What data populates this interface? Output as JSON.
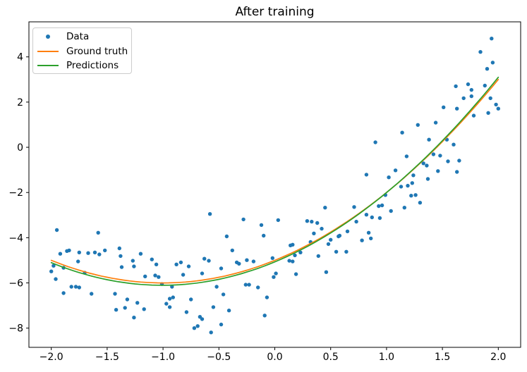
{
  "chart_data": {
    "type": "scatter",
    "title": "After training",
    "axes": {
      "xlim": [
        -2.2,
        2.2
      ],
      "ylim": [
        -8.85,
        5.55
      ],
      "xticks": [
        -2.0,
        -1.5,
        -1.0,
        -0.5,
        0.0,
        0.5,
        1.0,
        1.5,
        2.0
      ],
      "xtick_labels": [
        "−2.0",
        "−1.5",
        "−1.0",
        "−0.5",
        "0.0",
        "0.5",
        "1.0",
        "1.5",
        "2.0"
      ],
      "yticks": [
        4,
        2,
        0,
        -2,
        -4,
        -6,
        -8
      ],
      "ytick_labels": [
        "4",
        "2",
        "0",
        "−2",
        "−4",
        "−6",
        "−8"
      ],
      "grid": false,
      "frame_color": "#000000"
    },
    "legend": {
      "position": "upper-left",
      "entries": [
        {
          "label": "Data",
          "marker": "dot",
          "color": "#1f77b4"
        },
        {
          "label": "Ground truth",
          "marker": "line",
          "color": "#ff7f0e"
        },
        {
          "label": "Predictions",
          "marker": "line",
          "color": "#2ca02c"
        }
      ]
    },
    "series": [
      {
        "name": "Data",
        "kind": "scatter",
        "color": "#1f77b4",
        "marker_radius": 2.7,
        "points": [
          [
            -1.95,
            -3.66
          ],
          [
            -1.58,
            -3.78
          ],
          [
            -1.92,
            -4.71
          ],
          [
            -1.86,
            -4.59
          ],
          [
            -1.84,
            -4.56
          ],
          [
            -1.98,
            -5.24
          ],
          [
            -2.0,
            -5.49
          ],
          [
            -1.89,
            -5.33
          ],
          [
            -1.96,
            -5.83
          ],
          [
            -1.75,
            -4.65
          ],
          [
            -1.67,
            -4.68
          ],
          [
            -1.61,
            -4.65
          ],
          [
            -1.57,
            -4.74
          ],
          [
            -1.52,
            -4.56
          ],
          [
            -1.76,
            -5.05
          ],
          [
            -1.7,
            -5.55
          ],
          [
            -1.82,
            -6.17
          ],
          [
            -1.89,
            -6.45
          ],
          [
            -1.78,
            -6.17
          ],
          [
            -1.75,
            -6.2
          ],
          [
            -1.64,
            -6.48
          ],
          [
            -1.39,
            -4.47
          ],
          [
            -1.38,
            -4.81
          ],
          [
            -1.37,
            -5.3
          ],
          [
            -1.27,
            -5.02
          ],
          [
            -1.26,
            -5.27
          ],
          [
            -1.43,
            -6.48
          ],
          [
            -1.32,
            -6.73
          ],
          [
            -1.42,
            -7.19
          ],
          [
            -1.34,
            -7.1
          ],
          [
            -1.2,
            -4.71
          ],
          [
            -1.23,
            -6.88
          ],
          [
            -1.17,
            -7.16
          ],
          [
            -1.26,
            -7.53
          ],
          [
            -1.16,
            -5.71
          ],
          [
            -1.1,
            -4.96
          ],
          [
            -1.06,
            -5.18
          ],
          [
            -1.04,
            -5.74
          ],
          [
            -1.07,
            -5.67
          ],
          [
            -1.01,
            -6.05
          ],
          [
            -0.92,
            -6.17
          ],
          [
            -0.94,
            -6.7
          ],
          [
            -0.91,
            -6.64
          ],
          [
            -0.97,
            -6.92
          ],
          [
            -0.94,
            -7.07
          ],
          [
            -0.88,
            -5.18
          ],
          [
            -0.84,
            -5.09
          ],
          [
            -0.82,
            -5.64
          ],
          [
            -0.77,
            -5.27
          ],
          [
            -0.75,
            -6.73
          ],
          [
            -0.79,
            -7.29
          ],
          [
            -0.67,
            -7.5
          ],
          [
            -0.72,
            -8.0
          ],
          [
            -0.69,
            -7.91
          ],
          [
            -0.65,
            -7.6
          ],
          [
            -0.58,
            -2.95
          ],
          [
            -0.28,
            -3.19
          ],
          [
            -0.12,
            -3.44
          ],
          [
            -0.1,
            -3.91
          ],
          [
            -0.43,
            -3.94
          ],
          [
            0.03,
            -3.22
          ],
          [
            -0.38,
            -4.56
          ],
          [
            -0.63,
            -4.93
          ],
          [
            -0.59,
            -5.02
          ],
          [
            -0.48,
            -5.36
          ],
          [
            -0.65,
            -5.58
          ],
          [
            -0.52,
            -6.17
          ],
          [
            -0.46,
            -6.51
          ],
          [
            -0.55,
            -7.07
          ],
          [
            -0.41,
            -7.22
          ],
          [
            -0.48,
            -7.84
          ],
          [
            -0.57,
            -8.19
          ],
          [
            -0.34,
            -5.09
          ],
          [
            -0.32,
            -5.15
          ],
          [
            -0.25,
            -4.99
          ],
          [
            -0.19,
            -5.05
          ],
          [
            -0.26,
            -6.08
          ],
          [
            -0.23,
            -6.08
          ],
          [
            -0.15,
            -6.2
          ],
          [
            -0.01,
            -5.74
          ],
          [
            0.01,
            -5.58
          ],
          [
            -0.02,
            -4.9
          ],
          [
            0.14,
            -4.34
          ],
          [
            0.16,
            -4.31
          ],
          [
            0.18,
            -4.78
          ],
          [
            0.13,
            -5.02
          ],
          [
            0.16,
            -5.05
          ],
          [
            0.23,
            -4.65
          ],
          [
            0.29,
            -3.26
          ],
          [
            0.33,
            -3.29
          ],
          [
            0.38,
            -3.35
          ],
          [
            0.42,
            -3.6
          ],
          [
            0.32,
            -4.19
          ],
          [
            0.35,
            -3.81
          ],
          [
            0.48,
            -4.28
          ],
          [
            0.5,
            -4.09
          ],
          [
            0.57,
            -3.94
          ],
          [
            0.58,
            -3.91
          ],
          [
            0.65,
            -3.72
          ],
          [
            0.64,
            -4.62
          ],
          [
            0.55,
            -4.62
          ],
          [
            0.39,
            -4.81
          ],
          [
            0.46,
            -5.52
          ],
          [
            0.19,
            -5.61
          ],
          [
            0.71,
            -2.64
          ],
          [
            0.45,
            -2.67
          ],
          [
            -0.09,
            -7.44
          ],
          [
            -0.07,
            -6.64
          ],
          [
            0.73,
            -3.29
          ],
          [
            0.99,
            -2.11
          ],
          [
            1.22,
            -2.14
          ],
          [
            1.26,
            -2.11
          ],
          [
            1.3,
            -2.45
          ],
          [
            0.93,
            -2.6
          ],
          [
            0.96,
            -2.57
          ],
          [
            1.16,
            -2.67
          ],
          [
            1.04,
            -2.82
          ],
          [
            0.82,
            -2.98
          ],
          [
            0.87,
            -3.1
          ],
          [
            0.94,
            -3.13
          ],
          [
            0.84,
            -3.78
          ],
          [
            0.86,
            -4.03
          ],
          [
            0.78,
            -4.12
          ],
          [
            1.13,
            -1.74
          ],
          [
            1.19,
            -1.7
          ],
          [
            1.94,
            4.81
          ],
          [
            1.84,
            4.22
          ],
          [
            1.95,
            3.75
          ],
          [
            1.9,
            3.47
          ],
          [
            1.88,
            2.73
          ],
          [
            1.73,
            2.79
          ],
          [
            1.62,
            2.7
          ],
          [
            1.76,
            2.54
          ],
          [
            1.93,
            2.17
          ],
          [
            1.98,
            1.89
          ],
          [
            2.0,
            1.71
          ],
          [
            1.91,
            1.52
          ],
          [
            1.76,
            2.26
          ],
          [
            1.69,
            2.17
          ],
          [
            1.63,
            1.71
          ],
          [
            1.51,
            1.77
          ],
          [
            1.78,
            1.4
          ],
          [
            1.28,
            0.99
          ],
          [
            1.44,
            1.09
          ],
          [
            1.38,
            0.34
          ],
          [
            1.54,
            0.34
          ],
          [
            1.6,
            0.12
          ],
          [
            1.14,
            0.65
          ],
          [
            0.9,
            0.22
          ],
          [
            1.18,
            -0.4
          ],
          [
            1.42,
            -0.31
          ],
          [
            1.48,
            -0.37
          ],
          [
            1.55,
            -0.62
          ],
          [
            1.65,
            -0.59
          ],
          [
            1.33,
            -0.71
          ],
          [
            1.36,
            -0.81
          ],
          [
            1.46,
            -1.05
          ],
          [
            1.63,
            -1.09
          ],
          [
            1.08,
            -1.02
          ],
          [
            0.82,
            -1.21
          ],
          [
            1.02,
            -1.33
          ],
          [
            1.24,
            -1.24
          ],
          [
            1.37,
            -1.4
          ],
          [
            1.23,
            -1.58
          ]
        ]
      },
      {
        "name": "Ground truth",
        "kind": "line",
        "color": "#ff7f0e",
        "line_width": 1.7,
        "poly_coeffs": [
          1.0,
          2.0,
          -5.0
        ],
        "x_range": [
          -2.0,
          2.0
        ]
      },
      {
        "name": "Predictions",
        "kind": "line",
        "color": "#2ca02c",
        "line_width": 1.7,
        "poly_coeffs": [
          1.017,
          2.05,
          -5.07
        ],
        "x_range": [
          -2.0,
          2.0
        ]
      }
    ]
  }
}
